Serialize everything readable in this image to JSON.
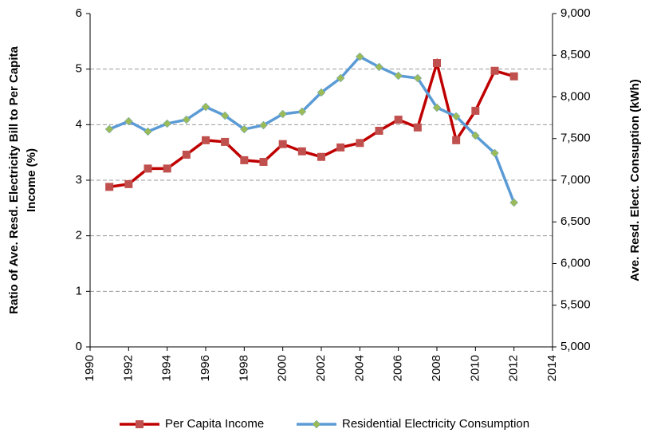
{
  "chart_data": {
    "type": "line",
    "ylabel": [
      "Ratio of Ave. Resd. Electricity Bill  to Per Capita",
      "Income (%)"
    ],
    "y2label": "Ave. Resd. Elect. Consuption (kWh)",
    "x": [
      1991,
      1992,
      1993,
      1994,
      1995,
      1996,
      1997,
      1998,
      1999,
      2000,
      2001,
      2002,
      2003,
      2004,
      2005,
      2006,
      2007,
      2008,
      2009,
      2010,
      2011,
      2012
    ],
    "xlim": [
      1990,
      2014
    ],
    "xticks": [
      1990,
      1992,
      1994,
      1996,
      1998,
      2000,
      2002,
      2004,
      2006,
      2008,
      2010,
      2012,
      2014
    ],
    "ylim": [
      0,
      6
    ],
    "yticks": [
      0,
      1,
      2,
      3,
      4,
      5,
      6
    ],
    "y2lim": [
      5000,
      9000
    ],
    "y2ticks": [
      {
        "value": 5000,
        "label": "5,000"
      },
      {
        "value": 5500,
        "label": "5,500"
      },
      {
        "value": 6000,
        "label": "6,000"
      },
      {
        "value": 6500,
        "label": "6,500"
      },
      {
        "value": 7000,
        "label": "7,000"
      },
      {
        "value": 7500,
        "label": "7,500"
      },
      {
        "value": 8000,
        "label": "8,000"
      },
      {
        "value": 8500,
        "label": "8,500"
      },
      {
        "value": 9000,
        "label": "9,000"
      }
    ],
    "grid": true,
    "legend": "bottom",
    "series": [
      {
        "name": "Per Capita Income",
        "color": "#c00000",
        "marker_color": "#c0504d",
        "marker": "square",
        "values": [
          2.88,
          2.93,
          3.21,
          3.21,
          3.46,
          3.72,
          3.69,
          3.36,
          3.33,
          3.65,
          3.52,
          3.42,
          3.59,
          3.67,
          3.89,
          4.09,
          3.95,
          5.11,
          3.72,
          4.25,
          4.97,
          4.87
        ]
      },
      {
        "name": "Residential Electricity Consumption",
        "color": "#5b9bd5",
        "marker_color": "#9bbb59",
        "marker": "diamond",
        "axis": "y2",
        "values": [
          7612,
          7708,
          7584,
          7679,
          7727,
          7880,
          7775,
          7612,
          7660,
          7794,
          7823,
          8053,
          8225,
          8483,
          8359,
          8254,
          8225,
          7871,
          7766,
          7536,
          7325,
          6732
        ]
      }
    ]
  }
}
